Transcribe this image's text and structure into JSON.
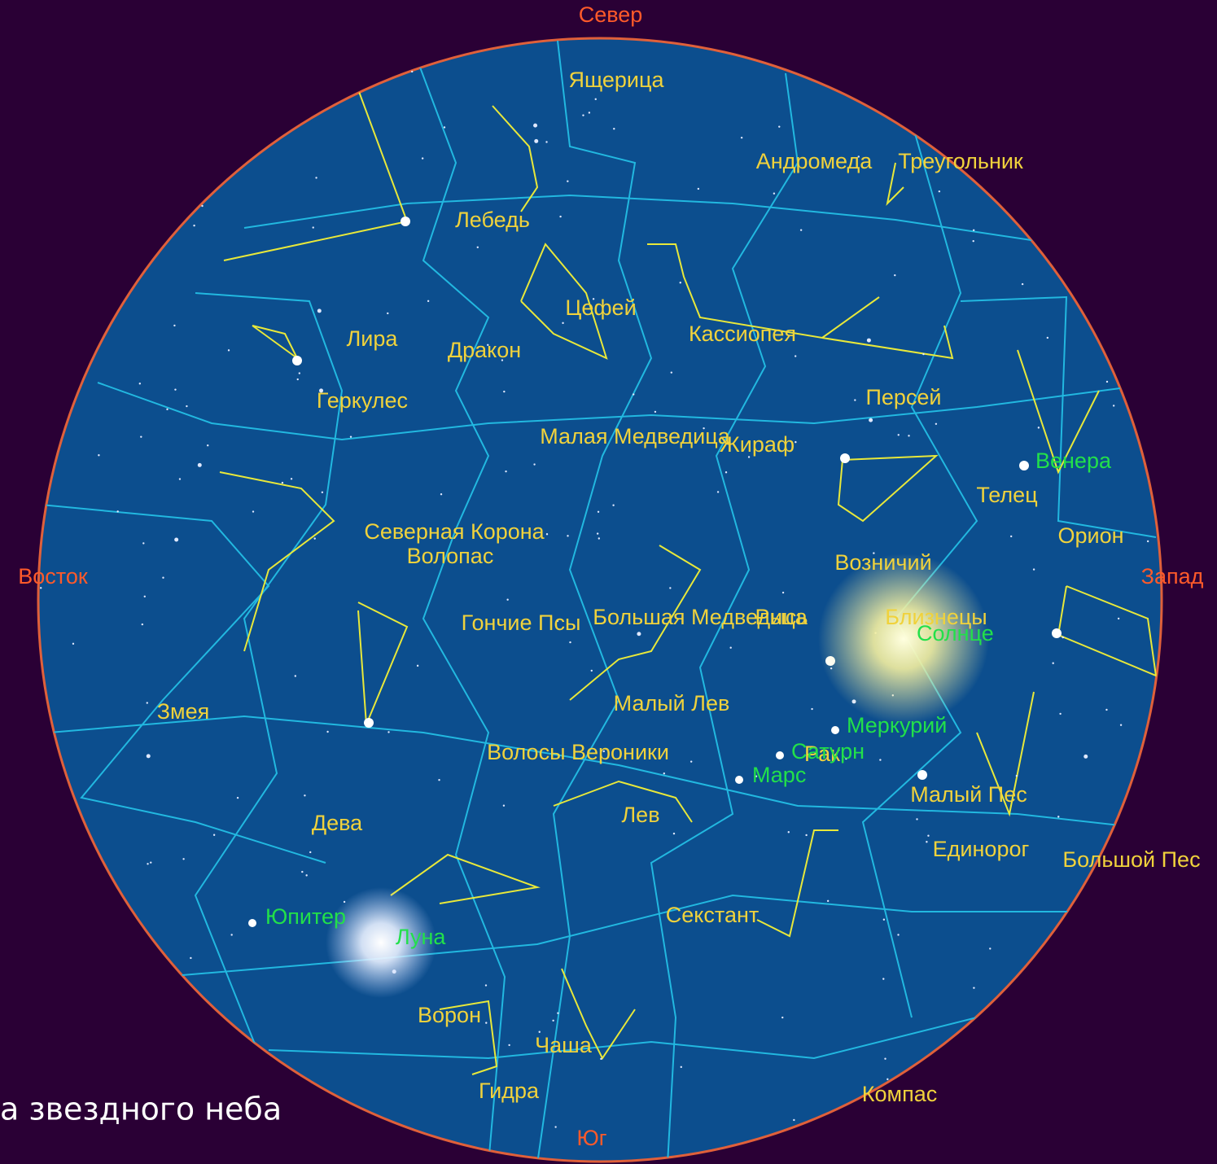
{
  "directions": {
    "north": "Север",
    "east": "Восток",
    "west": "Запад",
    "south": "Юг"
  },
  "constellations": [
    {
      "label": "Ящерица"
    },
    {
      "label": "Андромеда"
    },
    {
      "label": "Треугольник"
    },
    {
      "label": "Лебедь"
    },
    {
      "label": "Цефей"
    },
    {
      "label": "Лира"
    },
    {
      "label": "Дракон"
    },
    {
      "label": "Кассиопея"
    },
    {
      "label": "Геркулес"
    },
    {
      "label": "Персей"
    },
    {
      "label": "Малая Медведица"
    },
    {
      "label": "Жираф"
    },
    {
      "label": "Северная Корона"
    },
    {
      "label": "Волопас"
    },
    {
      "label": "Телец"
    },
    {
      "label": "Орион"
    },
    {
      "label": "Возничий"
    },
    {
      "label": "Гончие Псы"
    },
    {
      "label": "Большая Медведица"
    },
    {
      "label": "Рысь"
    },
    {
      "label": "Близнецы"
    },
    {
      "label": "Змея"
    },
    {
      "label": "Малый Лев"
    },
    {
      "label": "Волосы Вероники"
    },
    {
      "label": "Рак"
    },
    {
      "label": "Дева"
    },
    {
      "label": "Лев"
    },
    {
      "label": "Малый Пес"
    },
    {
      "label": "Единорог"
    },
    {
      "label": "Большой Пес"
    },
    {
      "label": "Секстант"
    },
    {
      "label": "Ворон"
    },
    {
      "label": "Чаша"
    },
    {
      "label": "Гидра"
    },
    {
      "label": "Компас"
    }
  ],
  "planets": [
    {
      "label": "Венера"
    },
    {
      "label": "Солнце"
    },
    {
      "label": "Меркурий"
    },
    {
      "label": "Сатурн"
    },
    {
      "label": "Марс"
    },
    {
      "label": "Юпитер"
    },
    {
      "label": "Луна"
    }
  ],
  "caption": "а звездного неба"
}
